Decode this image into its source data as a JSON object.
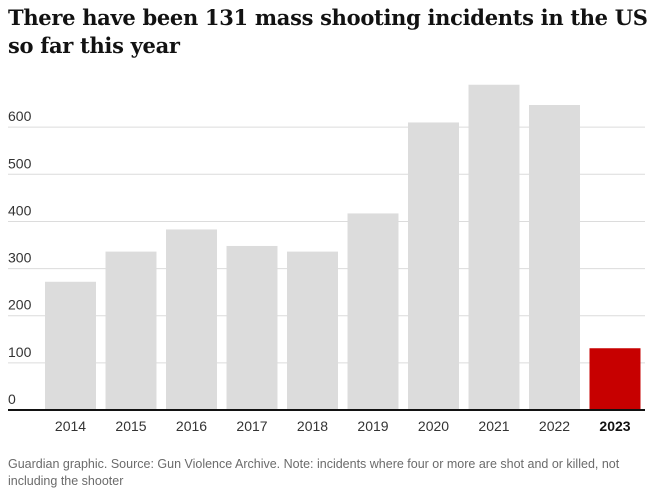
{
  "title": "There have been 131 mass shooting incidents in the US so far this year",
  "footnote": "Guardian graphic. Source: Gun Violence Archive. Note: incidents where four or more are shot and or killed, not including the shooter",
  "colors": {
    "bar": "#dcdcdc",
    "highlight": "#c70000",
    "grid": "#dcdcdc",
    "axis": "#121212"
  },
  "chart_data": {
    "type": "bar",
    "categories": [
      "2014",
      "2015",
      "2016",
      "2017",
      "2018",
      "2019",
      "2020",
      "2021",
      "2022",
      "2023"
    ],
    "values": [
      272,
      336,
      383,
      348,
      336,
      417,
      610,
      690,
      647,
      131
    ],
    "highlight_category": "2023",
    "yticks": [
      "0",
      "100",
      "200",
      "300",
      "400",
      "500",
      "600"
    ],
    "ylim": [
      0,
      700
    ],
    "grid": true
  }
}
